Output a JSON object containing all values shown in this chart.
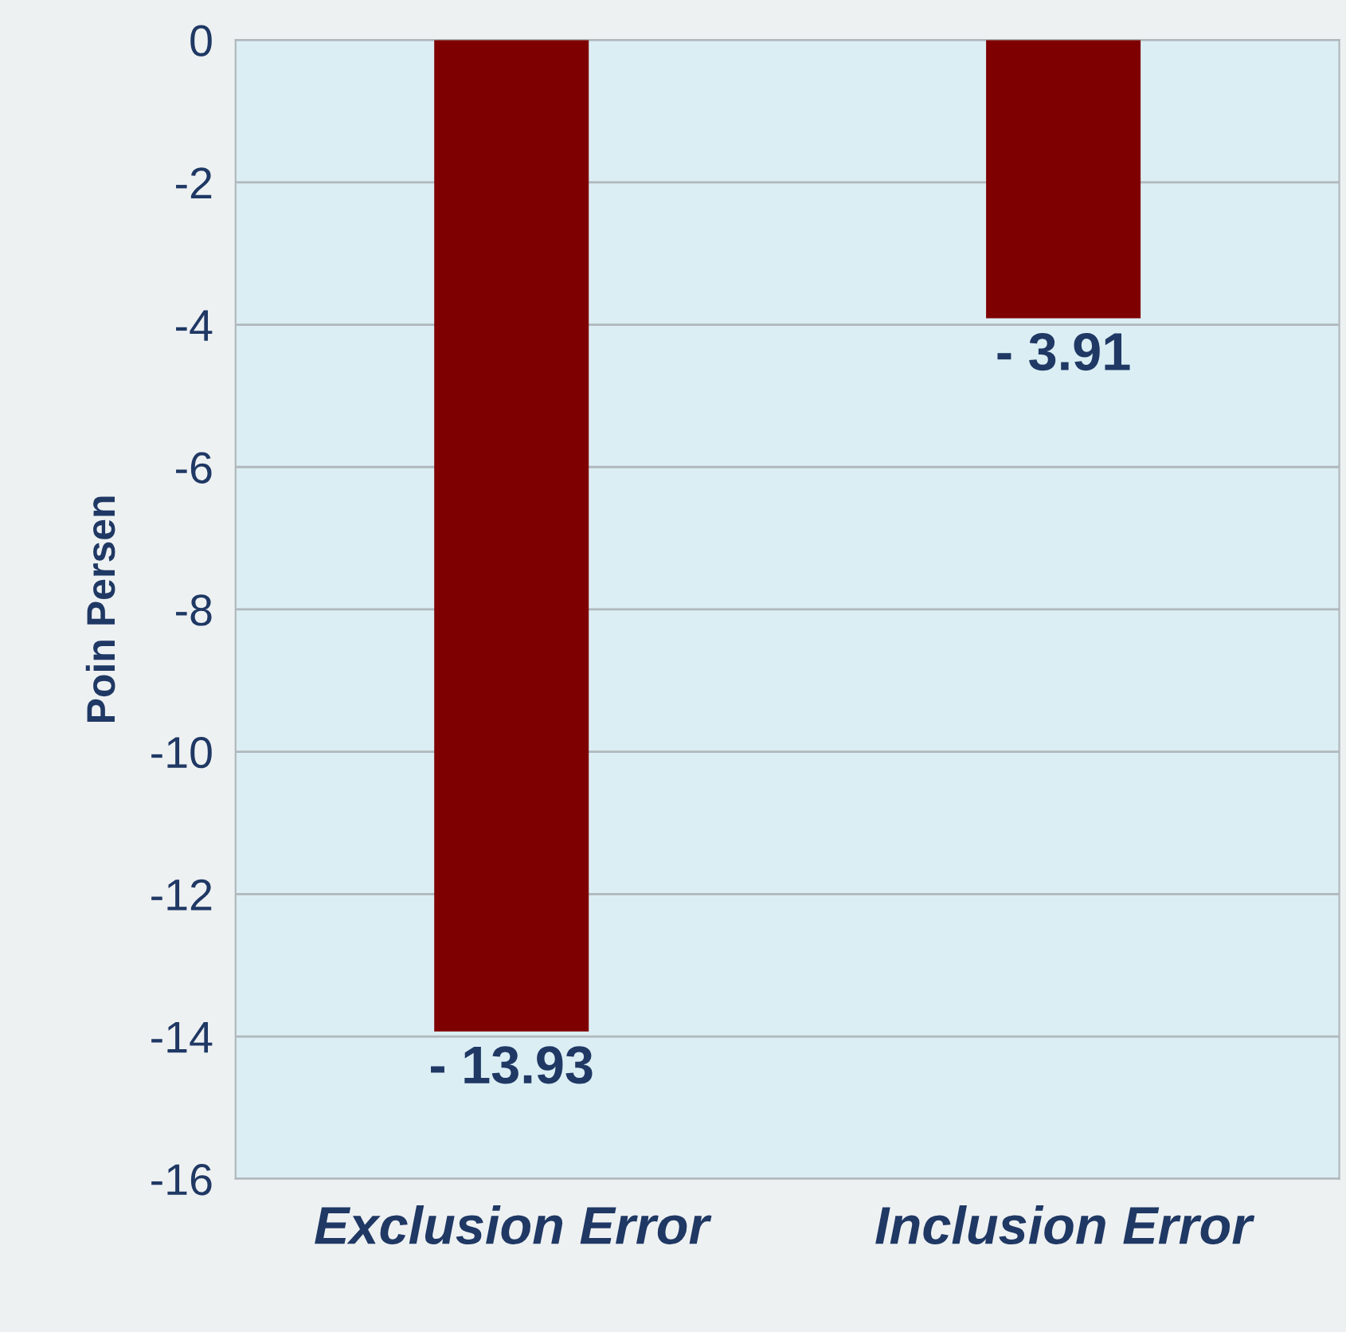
{
  "chart_data": {
    "type": "bar",
    "ylabel": "Poin Persen",
    "categories": [
      "Exclusion Error",
      "Inclusion Error"
    ],
    "values": [
      -13.93,
      -3.91
    ],
    "value_labels": [
      "- 13.93",
      "- 3.91"
    ],
    "color": "#7f0000",
    "ylim": [
      -16,
      0
    ],
    "yticks": [
      -16,
      -14,
      -12,
      -10,
      -8,
      -6,
      -4,
      -2,
      0
    ],
    "grid": "y",
    "legend": false
  }
}
